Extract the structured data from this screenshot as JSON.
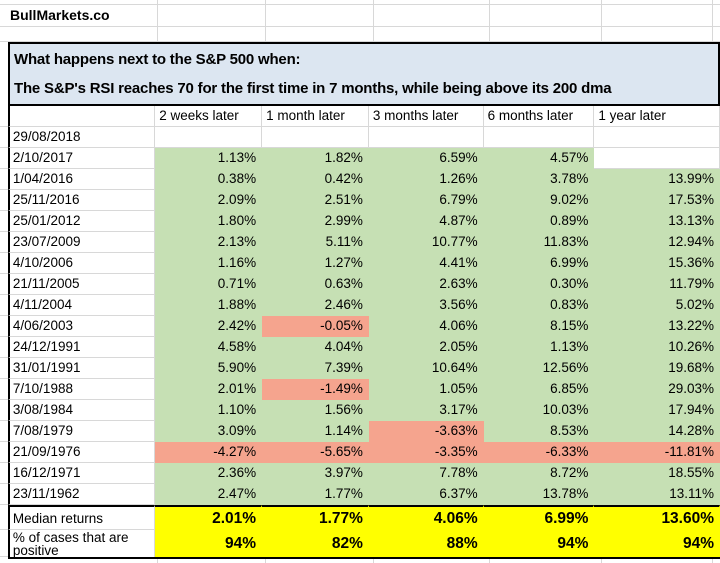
{
  "brand": "BullMarkets.co",
  "title": {
    "line1": "What happens next to the S&P 500 when:",
    "line2": "The S&P's RSI reaches 70 for the first time in 7 months, while being above its 200 dma"
  },
  "table": {
    "column_headers": [
      "2 weeks later",
      "1 month later",
      "3 months later",
      "6 months later",
      "1 year later"
    ],
    "rows": [
      {
        "date": "29/08/2018",
        "values": [
          "",
          "",
          "",
          "",
          ""
        ]
      },
      {
        "date": "2/10/2017",
        "values": [
          "1.13%",
          "1.82%",
          "6.59%",
          "4.57%",
          ""
        ]
      },
      {
        "date": "1/04/2016",
        "values": [
          "0.38%",
          "0.42%",
          "1.26%",
          "3.78%",
          "13.99%"
        ]
      },
      {
        "date": "25/11/2016",
        "values": [
          "2.09%",
          "2.51%",
          "6.79%",
          "9.02%",
          "17.53%"
        ]
      },
      {
        "date": "25/01/2012",
        "values": [
          "1.80%",
          "2.99%",
          "4.87%",
          "0.89%",
          "13.13%"
        ]
      },
      {
        "date": "23/07/2009",
        "values": [
          "2.13%",
          "5.11%",
          "10.77%",
          "11.83%",
          "12.94%"
        ]
      },
      {
        "date": "4/10/2006",
        "values": [
          "1.16%",
          "1.27%",
          "4.41%",
          "6.99%",
          "15.36%"
        ]
      },
      {
        "date": "21/11/2005",
        "values": [
          "0.71%",
          "0.63%",
          "2.63%",
          "0.30%",
          "11.79%"
        ]
      },
      {
        "date": "4/11/2004",
        "values": [
          "1.88%",
          "2.46%",
          "3.56%",
          "0.83%",
          "5.02%"
        ]
      },
      {
        "date": "4/06/2003",
        "values": [
          "2.42%",
          "-0.05%",
          "4.06%",
          "8.15%",
          "13.22%"
        ]
      },
      {
        "date": "24/12/1991",
        "values": [
          "4.58%",
          "4.04%",
          "2.05%",
          "1.13%",
          "10.26%"
        ]
      },
      {
        "date": "31/01/1991",
        "values": [
          "5.90%",
          "7.39%",
          "10.64%",
          "12.56%",
          "19.68%"
        ]
      },
      {
        "date": "7/10/1988",
        "values": [
          "2.01%",
          "-1.49%",
          "1.05%",
          "6.85%",
          "29.03%"
        ]
      },
      {
        "date": "3/08/1984",
        "values": [
          "1.10%",
          "1.56%",
          "3.17%",
          "10.03%",
          "17.94%"
        ]
      },
      {
        "date": "7/08/1979",
        "values": [
          "3.09%",
          "1.14%",
          "-3.63%",
          "8.53%",
          "14.28%"
        ]
      },
      {
        "date": "21/09/1976",
        "values": [
          "-4.27%",
          "-5.65%",
          "-3.35%",
          "-6.33%",
          "-11.81%"
        ]
      },
      {
        "date": "16/12/1971",
        "values": [
          "2.36%",
          "3.97%",
          "7.78%",
          "8.72%",
          "18.55%"
        ]
      },
      {
        "date": "23/11/1962",
        "values": [
          "2.47%",
          "1.77%",
          "6.37%",
          "13.78%",
          "13.11%"
        ]
      }
    ],
    "summary": {
      "median_label": "Median returns",
      "median_values": [
        "2.01%",
        "1.77%",
        "4.06%",
        "6.99%",
        "13.60%"
      ],
      "positive_label": "% of cases that are positive",
      "positive_values": [
        "94%",
        "82%",
        "88%",
        "94%",
        "94%"
      ]
    }
  },
  "colors": {
    "positive_fill": "#C6E0B4",
    "negative_fill": "#F5A48E",
    "summary_fill": "#FFFF00",
    "title_fill": "#DCE6F1",
    "gridline": "#D8D8D8",
    "border": "#000000"
  }
}
